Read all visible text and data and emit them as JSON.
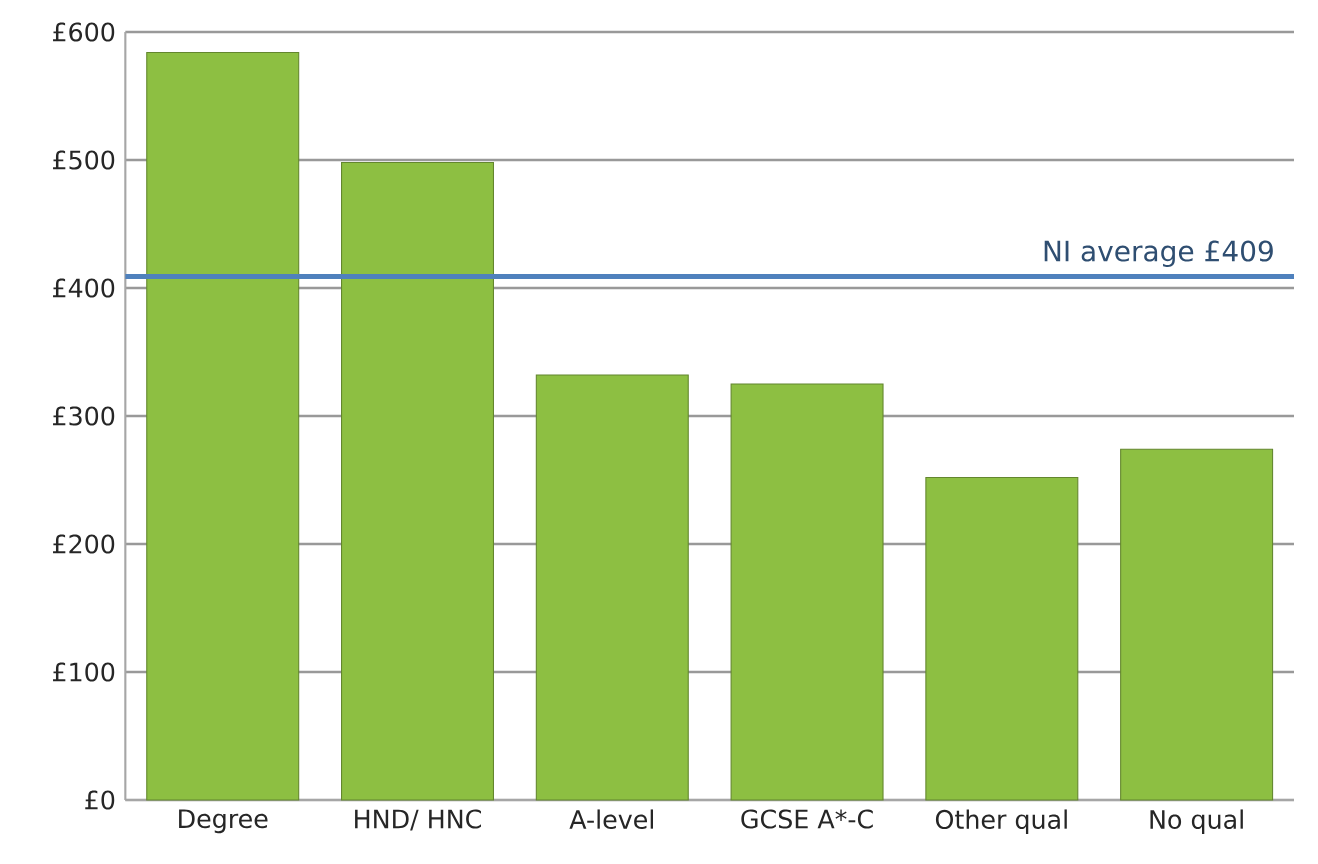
{
  "chart_data": {
    "type": "bar",
    "categories": [
      "Degree",
      "HND/ HNC",
      "A-level",
      "GCSE A*-C",
      "Other qual",
      "No qual"
    ],
    "values": [
      584,
      498,
      332,
      325,
      252,
      274
    ],
    "color": "#8dbf42",
    "ylim": [
      0,
      600
    ],
    "yticks": [
      {
        "value": 0,
        "label": "£0"
      },
      {
        "value": 100,
        "label": "£100"
      },
      {
        "value": 200,
        "label": "£200"
      },
      {
        "value": 300,
        "label": "£300"
      },
      {
        "value": 400,
        "label": "£400"
      },
      {
        "value": 500,
        "label": "£500"
      },
      {
        "value": 600,
        "label": "£600"
      }
    ],
    "grid": "y",
    "ref_lines": [
      {
        "axis": "y",
        "value": 409,
        "label": "NI average £409",
        "color": "#4f81bd"
      }
    ]
  }
}
